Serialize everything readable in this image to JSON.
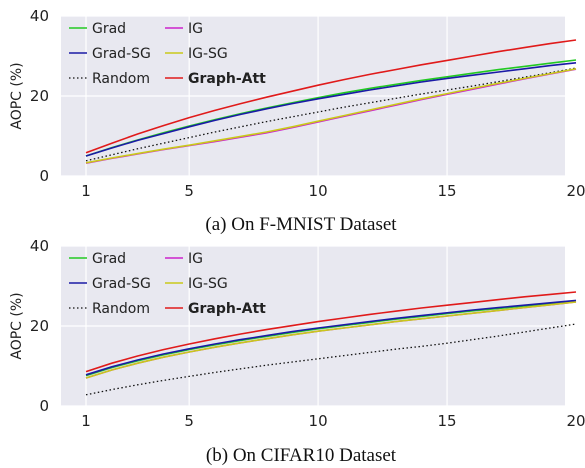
{
  "chart_data": [
    {
      "type": "line",
      "caption": "(a) On F-MNIST Dataset",
      "ylabel": "AOPC (%)",
      "xlabel": "",
      "xlim": [
        1,
        20
      ],
      "ylim": [
        0,
        40
      ],
      "xticks": [
        1,
        5,
        10,
        15,
        20
      ],
      "yticks": [
        0,
        20,
        40
      ],
      "grid": true,
      "legend_position": "top-left",
      "x": [
        1,
        2,
        3,
        4,
        5,
        6,
        7,
        8,
        9,
        10,
        11,
        12,
        13,
        14,
        15,
        16,
        17,
        18,
        19,
        20
      ],
      "series": [
        {
          "name": "Grad",
          "color": "#22c922",
          "dash": "solid",
          "values": [
            5.0,
            7.1,
            9.0,
            10.8,
            12.5,
            14.1,
            15.6,
            17.0,
            18.3,
            19.6,
            20.8,
            21.9,
            22.9,
            23.9,
            24.8,
            25.7,
            26.6,
            27.4,
            28.2,
            29.0
          ]
        },
        {
          "name": "Grad-SG",
          "color": "#1a1aa6",
          "dash": "solid",
          "values": [
            5.0,
            7.0,
            8.9,
            10.6,
            12.3,
            13.9,
            15.4,
            16.8,
            18.1,
            19.3,
            20.4,
            21.5,
            22.5,
            23.5,
            24.4,
            25.2,
            26.0,
            26.8,
            27.6,
            28.3
          ]
        },
        {
          "name": "Random",
          "color": "#111111",
          "dash": "dotted",
          "values": [
            3.8,
            5.3,
            6.8,
            8.2,
            9.6,
            11.0,
            12.3,
            13.6,
            14.8,
            16.0,
            17.2,
            18.3,
            19.4,
            20.5,
            21.5,
            22.5,
            23.6,
            24.7,
            25.8,
            27.0
          ]
        },
        {
          "name": "IG",
          "color": "#cc22cc",
          "dash": "solid",
          "values": [
            3.2,
            4.4,
            5.5,
            6.6,
            7.6,
            8.6,
            9.7,
            10.8,
            12.1,
            13.5,
            14.9,
            16.3,
            17.7,
            19.1,
            20.4,
            21.7,
            23.0,
            24.3,
            25.5,
            26.7
          ]
        },
        {
          "name": "IG-SG",
          "color": "#c9c91a",
          "dash": "solid",
          "values": [
            3.3,
            4.5,
            5.6,
            6.7,
            7.7,
            8.8,
            9.9,
            11.0,
            12.3,
            13.7,
            15.1,
            16.5,
            17.9,
            19.3,
            20.6,
            21.9,
            23.2,
            24.4,
            25.6,
            26.8
          ]
        },
        {
          "name": "Graph-Att",
          "color": "#e01a1a",
          "dash": "solid",
          "bold_legend": true,
          "values": [
            5.8,
            8.2,
            10.5,
            12.6,
            14.6,
            16.4,
            18.1,
            19.7,
            21.2,
            22.7,
            24.1,
            25.4,
            26.6,
            27.8,
            28.9,
            30.0,
            31.1,
            32.1,
            33.1,
            34.0
          ]
        }
      ]
    },
    {
      "type": "line",
      "caption": "(b) On CIFAR10 Dataset",
      "ylabel": "AOPC (%)",
      "xlabel": "",
      "xlim": [
        1,
        20
      ],
      "ylim": [
        0,
        40
      ],
      "xticks": [
        1,
        5,
        10,
        15,
        20
      ],
      "yticks": [
        0,
        20,
        40
      ],
      "grid": true,
      "legend_position": "top-left",
      "x": [
        1,
        2,
        3,
        4,
        5,
        6,
        7,
        8,
        9,
        10,
        11,
        12,
        13,
        14,
        15,
        16,
        17,
        18,
        19,
        20
      ],
      "series": [
        {
          "name": "Grad",
          "color": "#22c922",
          "dash": "solid",
          "values": [
            7.6,
            9.6,
            11.3,
            12.8,
            14.1,
            15.3,
            16.4,
            17.4,
            18.4,
            19.3,
            20.1,
            20.9,
            21.7,
            22.4,
            23.1,
            23.8,
            24.4,
            25.0,
            25.6,
            26.2
          ]
        },
        {
          "name": "Grad-SG",
          "color": "#1a1aa6",
          "dash": "solid",
          "values": [
            7.8,
            9.8,
            11.5,
            13.0,
            14.3,
            15.5,
            16.6,
            17.6,
            18.6,
            19.5,
            20.3,
            21.1,
            21.9,
            22.6,
            23.3,
            24.0,
            24.6,
            25.2,
            25.8,
            26.4
          ]
        },
        {
          "name": "Random",
          "color": "#111111",
          "dash": "dotted",
          "values": [
            2.8,
            4.1,
            5.3,
            6.4,
            7.4,
            8.4,
            9.3,
            10.2,
            11.0,
            11.8,
            12.6,
            13.4,
            14.2,
            14.9,
            15.7,
            16.6,
            17.5,
            18.5,
            19.5,
            20.5
          ]
        },
        {
          "name": "IG",
          "color": "#cc22cc",
          "dash": "solid",
          "values": [
            7.0,
            9.0,
            10.7,
            12.2,
            13.5,
            14.7,
            15.8,
            16.8,
            17.8,
            18.7,
            19.5,
            20.3,
            21.1,
            21.8,
            22.5,
            23.2,
            23.9,
            24.6,
            25.3,
            26.0
          ]
        },
        {
          "name": "IG-SG",
          "color": "#c9c91a",
          "dash": "solid",
          "values": [
            7.0,
            9.0,
            10.7,
            12.2,
            13.5,
            14.7,
            15.8,
            16.8,
            17.8,
            18.7,
            19.5,
            20.3,
            21.1,
            21.8,
            22.5,
            23.2,
            23.9,
            24.6,
            25.3,
            26.0
          ]
        },
        {
          "name": "Graph-Att",
          "color": "#e01a1a",
          "dash": "solid",
          "bold_legend": true,
          "values": [
            8.6,
            10.7,
            12.5,
            14.1,
            15.5,
            16.8,
            18.0,
            19.1,
            20.1,
            21.1,
            22.0,
            22.9,
            23.7,
            24.5,
            25.2,
            25.9,
            26.6,
            27.3,
            27.9,
            28.5
          ]
        }
      ]
    }
  ]
}
